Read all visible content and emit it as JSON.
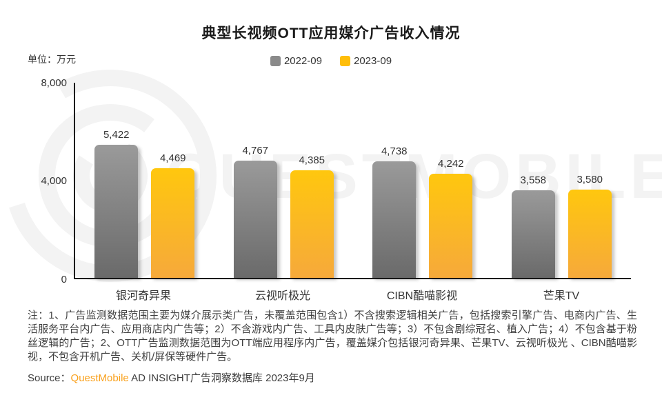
{
  "header": {
    "title": "典型长视频OTT应用媒介广告收入情况",
    "unit_label": "单位：万元"
  },
  "chart_data": {
    "type": "bar",
    "title": "典型长视频OTT应用媒介广告收入情况",
    "unit": "万元",
    "categories": [
      "银河奇异果",
      "云视听极光",
      "CIBN酷喵影视",
      "芒果TV"
    ],
    "series": [
      {
        "name": "2022-09",
        "color": "#8a8a8a",
        "gradient": [
          "#9a9a9a",
          "#6a6a6a"
        ],
        "values": [
          5422,
          4767,
          4738,
          3558
        ],
        "value_labels": [
          "5,422",
          "4,767",
          "4,738",
          "3,558"
        ]
      },
      {
        "name": "2023-09",
        "color": "#ffbe0a",
        "gradient": [
          "#ffc70e",
          "#f6a93b"
        ],
        "values": [
          4469,
          4385,
          4242,
          3580
        ],
        "value_labels": [
          "4,469",
          "4,385",
          "4,242",
          "3,580"
        ]
      }
    ],
    "ylim": [
      0,
      8000
    ],
    "yticks": [
      "8,000",
      "4,000",
      "0"
    ],
    "grid": false,
    "legend_position": "top-center",
    "xlabel": "",
    "ylabel": "单位：万元"
  },
  "watermark": {
    "text": "QUESTMOBILE"
  },
  "notes": {
    "text": "注：1、广告监测数据范围主要为媒介展示类广告，未覆盖范围包含1）不含搜索逻辑相关广告，包括搜索引擎广告、电商内广告、生活服务平台内广告、应用商店内广告等；2）不含游戏内广告、工具内皮肤广告等；3）不包含剧综冠名、植入广告；4）不包含基于粉丝逻辑的广告；2、OTT广告监测数据范围为OTT端应用程序内广告，覆盖媒介包括银河奇异果、芒果TV、云视听极光 、CIBN酷喵影视，不包含开机广告、关机/屏保等硬件广告。"
  },
  "source": {
    "prefix": "Source：",
    "brand": "QuestMobile",
    "rest": " AD INSIGHT广告洞察数据库 2023年9月"
  }
}
